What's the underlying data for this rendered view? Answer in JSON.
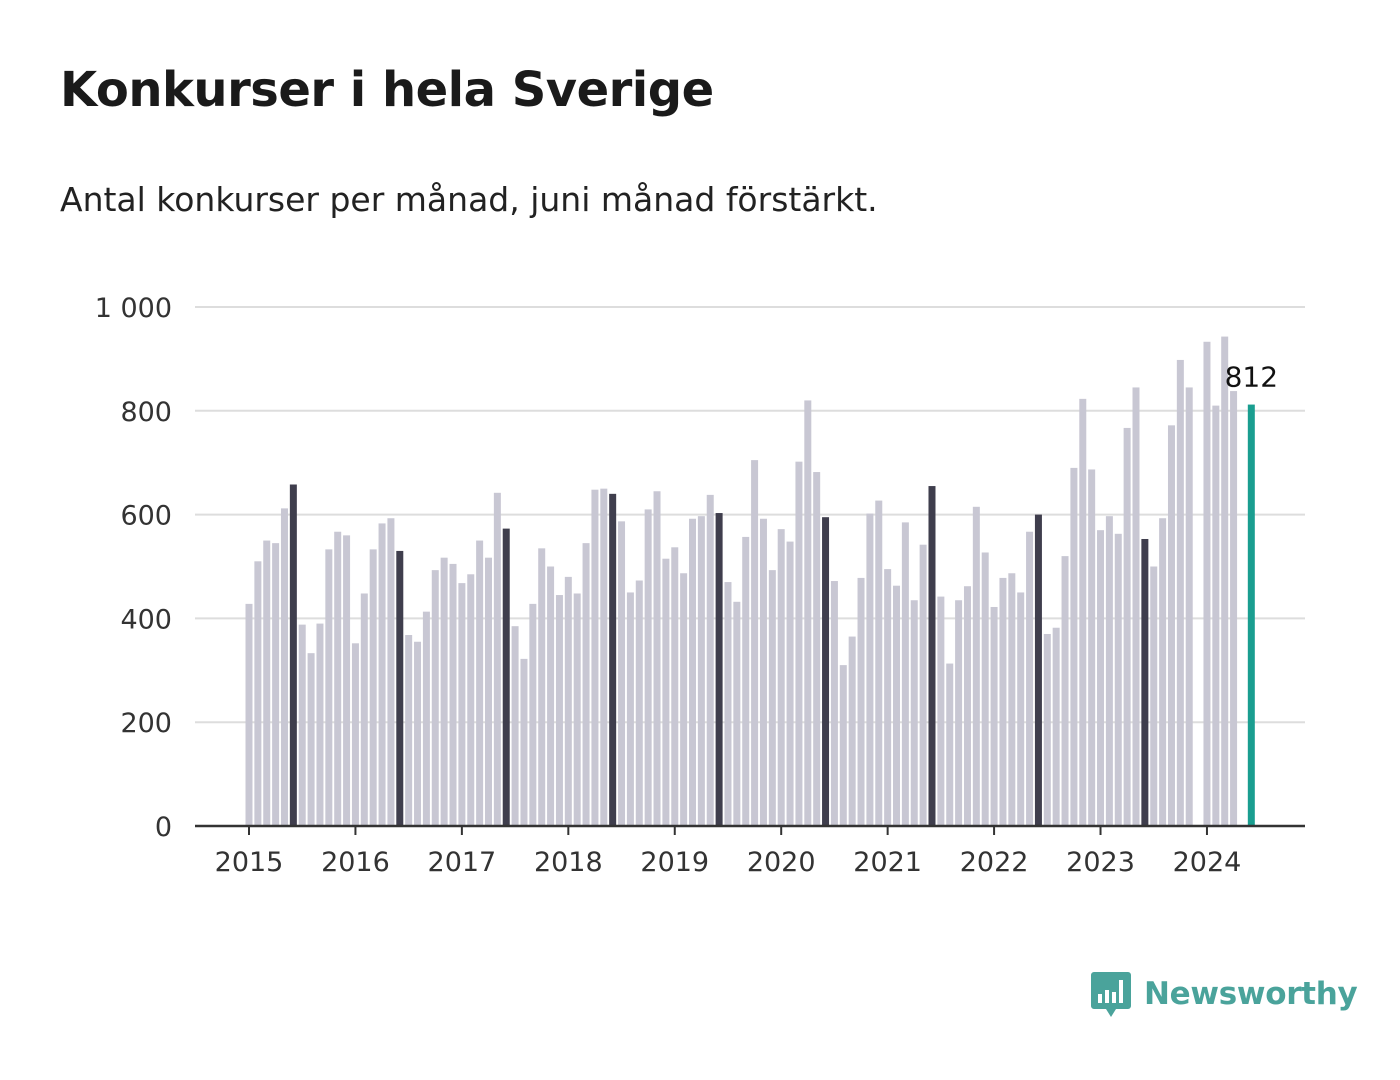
{
  "title": "Konkurser i hela Sverige",
  "subtitle": "Antal konkurser per månad, juni månad förstärkt.",
  "brand": "Newsworthy",
  "colors": {
    "bar": "#c8c7d3",
    "june_bar": "#3f3e4d",
    "latest_bar": "#1a9e90",
    "grid": "#dddddd",
    "axis": "#333333",
    "brand": "#4aa39b"
  },
  "chart_data": {
    "type": "bar",
    "ylim": [
      0,
      1000
    ],
    "y_ticks": [
      0,
      200,
      400,
      600,
      800,
      1000
    ],
    "y_tick_labels": [
      "0",
      "200",
      "400",
      "600",
      "800",
      "1 000"
    ],
    "x_tick_labels": [
      "2015",
      "2016",
      "2017",
      "2018",
      "2019",
      "2020",
      "2021",
      "2022",
      "2023",
      "2024"
    ],
    "highlight_month": "juni",
    "annotation": {
      "label": "812",
      "year": 2024,
      "month": 6
    },
    "series": [
      {
        "year": 2015,
        "values": [
          428,
          510,
          550,
          545,
          612,
          658,
          388,
          333,
          390,
          533,
          567,
          560
        ]
      },
      {
        "year": 2016,
        "values": [
          352,
          448,
          533,
          583,
          593,
          530,
          368,
          355,
          413,
          493,
          517,
          505
        ]
      },
      {
        "year": 2017,
        "values": [
          468,
          485,
          550,
          517,
          642,
          573,
          385,
          322,
          428,
          535,
          500,
          445
        ]
      },
      {
        "year": 2018,
        "values": [
          480,
          448,
          545,
          648,
          650,
          640,
          587,
          450,
          473,
          610,
          645,
          515
        ]
      },
      {
        "year": 2019,
        "values": [
          537,
          487,
          592,
          597,
          638,
          603,
          470,
          432,
          557,
          705,
          592,
          493
        ]
      },
      {
        "year": 2020,
        "values": [
          572,
          548,
          702,
          820,
          682,
          595,
          472,
          310,
          365,
          478,
          602,
          627
        ]
      },
      {
        "year": 2021,
        "values": [
          495,
          463,
          585,
          435,
          542,
          655,
          442,
          313,
          435,
          462,
          615,
          527
        ]
      },
      {
        "year": 2022,
        "values": [
          422,
          478,
          487,
          450,
          567,
          600,
          370,
          382,
          520,
          690,
          823,
          687
        ]
      },
      {
        "year": 2023,
        "values": [
          570,
          597,
          563,
          767,
          845,
          553,
          500,
          593,
          772,
          898,
          845,
          0
        ]
      },
      {
        "year": 2024,
        "values": [
          933,
          810,
          943,
          838,
          0,
          812
        ]
      }
    ]
  }
}
